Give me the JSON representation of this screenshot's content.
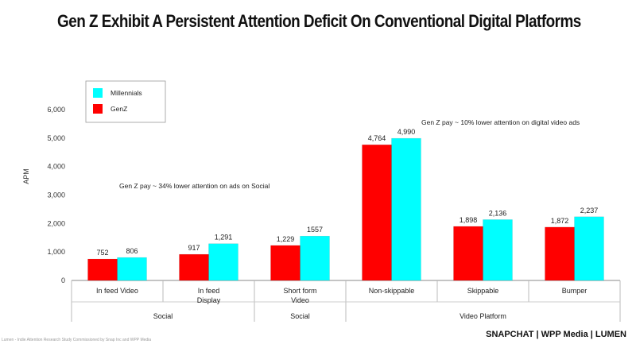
{
  "title": "Gen Z Exhibit A Persistent Attention Deficit On Conventional Digital Platforms",
  "chart_data": {
    "type": "bar",
    "ylabel": "APM",
    "ylim": [
      0,
      6500
    ],
    "yticks": [
      "0",
      "1,000",
      "2,000",
      "3,000",
      "4,000",
      "5,000",
      "6,000"
    ],
    "ytick_values": [
      0,
      1000,
      2000,
      3000,
      4000,
      5000,
      6000
    ],
    "categories": [
      "In feed Video",
      "In feed Display",
      "Short form Video",
      "Non-skippable",
      "Skippable",
      "Bumper"
    ],
    "series": [
      {
        "name": "GenZ",
        "color": "#ff0000",
        "values": [
          752,
          917,
          1229,
          4764,
          1898,
          1872
        ],
        "labels": [
          "752",
          "917",
          "1,229",
          "4,764",
          "1,898",
          "1,872"
        ]
      },
      {
        "name": "Millennials",
        "color": "#00ffff",
        "values": [
          806,
          1291,
          1557,
          4990,
          2136,
          2237
        ],
        "labels": [
          "806",
          "1,291",
          "1557",
          "4,990",
          "2,136",
          "2,237"
        ]
      }
    ],
    "legend": [
      "Millennials",
      "GenZ"
    ],
    "groups": [
      {
        "label": "Social",
        "from": 0,
        "to": 1
      },
      {
        "label": "Social",
        "from": 2,
        "to": 2
      },
      {
        "label": "Video Platform",
        "from": 3,
        "to": 5
      }
    ],
    "annotations": [
      "Gen Z  pay ~ 34%  lower attention on ads on Social",
      "Gen Z  pay ~ 10%  lower attention on digital video ads"
    ]
  },
  "footer": {
    "brand": "SNAPCHAT | WPP Media | LUMEN",
    "source": "Lumen - Indie Attention Research Study Commissioned by Snap Inc and WPP Media"
  }
}
